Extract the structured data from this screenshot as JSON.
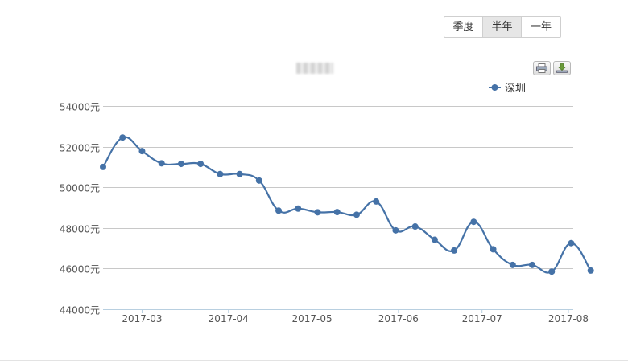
{
  "range_buttons": [
    {
      "label": "季度",
      "active": false
    },
    {
      "label": "半年",
      "active": true
    },
    {
      "label": "一年",
      "active": false
    }
  ],
  "toolbar": {
    "print_icon": "print-icon",
    "export_icon": "download-icon"
  },
  "colors": {
    "series": "#4572a7",
    "grid": "#c8c8c8",
    "axis_text": "#555555"
  },
  "chart_data": {
    "type": "line",
    "title": "",
    "legend": {
      "position": "top-right",
      "entries": [
        "深圳"
      ]
    },
    "x_tick_labels": [
      "2017-03",
      "2017-04",
      "2017-05",
      "2017-06",
      "2017-07",
      "2017-08"
    ],
    "x_range": [
      "2017-02-15",
      "2017-08-01"
    ],
    "y_range": [
      44000,
      54000
    ],
    "y_tick_values": [
      44000,
      46000,
      48000,
      50000,
      52000,
      54000
    ],
    "y_tick_labels": [
      "44000元",
      "46000元",
      "48000元",
      "50000元",
      "52000元",
      "54000元"
    ],
    "grid": true,
    "series": [
      {
        "name": "深圳",
        "points": [
          {
            "x": "2017-02-15",
            "y": 51000
          },
          {
            "x": "2017-02-22",
            "y": 52450
          },
          {
            "x": "2017-03-01",
            "y": 51780
          },
          {
            "x": "2017-03-08",
            "y": 51180
          },
          {
            "x": "2017-03-15",
            "y": 51150
          },
          {
            "x": "2017-03-22",
            "y": 51150
          },
          {
            "x": "2017-03-29",
            "y": 50650
          },
          {
            "x": "2017-04-05",
            "y": 50650
          },
          {
            "x": "2017-04-12",
            "y": 50330
          },
          {
            "x": "2017-04-19",
            "y": 48850
          },
          {
            "x": "2017-04-26",
            "y": 48950
          },
          {
            "x": "2017-05-03",
            "y": 48770
          },
          {
            "x": "2017-05-10",
            "y": 48780
          },
          {
            "x": "2017-05-17",
            "y": 48650
          },
          {
            "x": "2017-05-24",
            "y": 49300
          },
          {
            "x": "2017-05-31",
            "y": 47880
          },
          {
            "x": "2017-06-07",
            "y": 48070
          },
          {
            "x": "2017-06-14",
            "y": 47420
          },
          {
            "x": "2017-06-21",
            "y": 46890
          },
          {
            "x": "2017-06-28",
            "y": 48300
          },
          {
            "x": "2017-07-05",
            "y": 46950
          },
          {
            "x": "2017-07-12",
            "y": 46180
          },
          {
            "x": "2017-07-19",
            "y": 46180
          },
          {
            "x": "2017-07-26",
            "y": 45850
          },
          {
            "x": "2017-08-02",
            "y": 47250
          },
          {
            "x": "2017-08-09",
            "y": 45900
          }
        ]
      }
    ]
  }
}
